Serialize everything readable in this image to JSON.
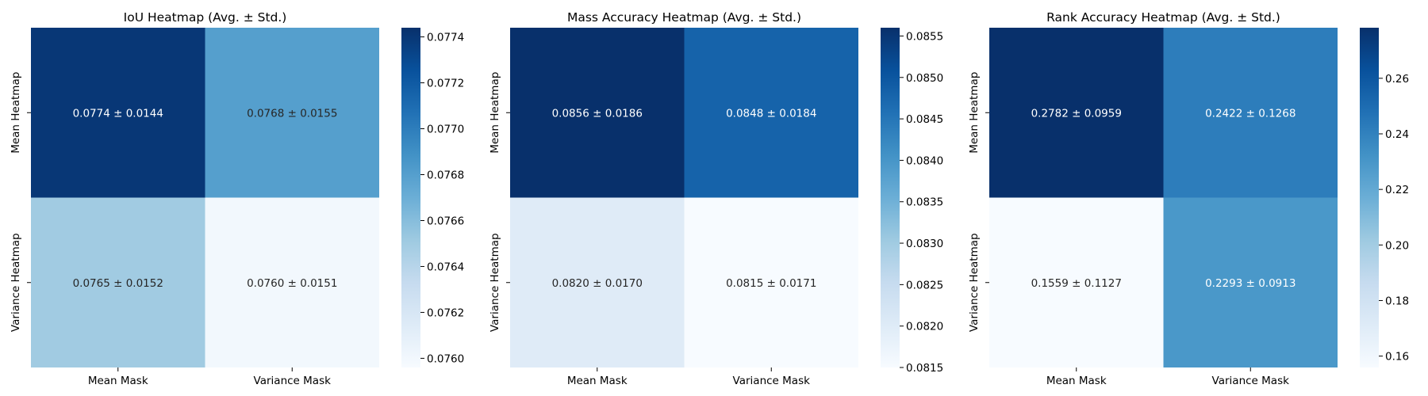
{
  "chart_data": [
    {
      "type": "heatmap",
      "title": "IoU Heatmap (Avg. ± Std.)",
      "x_categories": [
        "Mean Mask",
        "Variance Mask"
      ],
      "y_categories": [
        "Mean Heatmap",
        "Variance Heatmap"
      ],
      "values": [
        [
          0.0774,
          0.0768
        ],
        [
          0.0765,
          0.076
        ]
      ],
      "cell_labels": [
        [
          "0.0774 ± 0.0144",
          "0.0768 ± 0.0155"
        ],
        [
          "0.0765 ± 0.0152",
          "0.0760 ± 0.0151"
        ]
      ],
      "colormap": "Blues",
      "colorbar": {
        "range": [
          0.07596,
          0.07744
        ],
        "ticks": [
          0.076,
          0.0762,
          0.0764,
          0.0766,
          0.0768,
          0.077,
          0.0772,
          0.0774
        ],
        "tick_labels": [
          "0.0760",
          "0.0762",
          "0.0764",
          "0.0766",
          "0.0768",
          "0.0770",
          "0.0772",
          "0.0774"
        ]
      }
    },
    {
      "type": "heatmap",
      "title": "Mass Accuracy Heatmap (Avg. ± Std.)",
      "x_categories": [
        "Mean Mask",
        "Variance Mask"
      ],
      "y_categories": [
        "Mean Heatmap",
        "Variance Heatmap"
      ],
      "values": [
        [
          0.0856,
          0.0848
        ],
        [
          0.082,
          0.0815
        ]
      ],
      "cell_labels": [
        [
          "0.0856 ± 0.0186",
          "0.0848 ± 0.0184"
        ],
        [
          "0.0820 ± 0.0170",
          "0.0815 ± 0.0171"
        ]
      ],
      "colormap": "Blues",
      "colorbar": {
        "range": [
          0.0815,
          0.0856
        ],
        "ticks": [
          0.0815,
          0.082,
          0.0825,
          0.083,
          0.0835,
          0.084,
          0.0845,
          0.085,
          0.0855
        ],
        "tick_labels": [
          "0.0815",
          "0.0820",
          "0.0825",
          "0.0830",
          "0.0835",
          "0.0840",
          "0.0845",
          "0.0850",
          "0.0855"
        ]
      }
    },
    {
      "type": "heatmap",
      "title": "Rank Accuracy Heatmap (Avg. ± Std.)",
      "x_categories": [
        "Mean Mask",
        "Variance Mask"
      ],
      "y_categories": [
        "Mean Heatmap",
        "Variance Heatmap"
      ],
      "values": [
        [
          0.2782,
          0.2422
        ],
        [
          0.1559,
          0.2293
        ]
      ],
      "cell_labels": [
        [
          "0.2782 ± 0.0959",
          "0.2422 ± 0.1268"
        ],
        [
          "0.1559 ± 0.1127",
          "0.2293 ± 0.0913"
        ]
      ],
      "colormap": "Blues",
      "colorbar": {
        "range": [
          0.1559,
          0.2782
        ],
        "ticks": [
          0.16,
          0.18,
          0.2,
          0.22,
          0.24,
          0.26
        ],
        "tick_labels": [
          "0.16",
          "0.18",
          "0.20",
          "0.22",
          "0.24",
          "0.26"
        ]
      }
    }
  ]
}
